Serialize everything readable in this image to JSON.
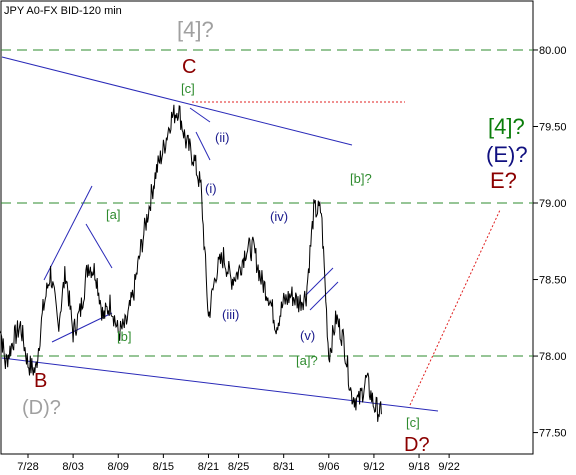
{
  "chart_data": {
    "type": "line",
    "title": "JPY A0-FX BID-120 min",
    "xlabel": "",
    "ylabel": "",
    "ylim": [
      77.36,
      80.32
    ],
    "y_ticks": [
      {
        "value": 80.0,
        "label": "80.00"
      },
      {
        "value": 79.5,
        "label": "79.50"
      },
      {
        "value": 79.0,
        "label": "79.00"
      },
      {
        "value": 78.5,
        "label": "78.50"
      },
      {
        "value": 78.0,
        "label": "78.00"
      },
      {
        "value": 77.5,
        "label": "77.50"
      }
    ],
    "x_ticks": [
      "7/28",
      "8/03",
      "8/09",
      "8/15",
      "8/21",
      "8/25",
      "8/31",
      "9/06",
      "9/12",
      "9/18",
      "9/22"
    ],
    "grid": false,
    "horizontal_levels": [
      80.0,
      79.0,
      78.0
    ],
    "series": [
      {
        "values": [
          {
            "x": "7/24",
            "y": 78.3
          },
          {
            "x": "7/25",
            "y": 77.95
          },
          {
            "x": "7/26",
            "y": 78.1
          },
          {
            "x": "7/27",
            "y": 78.2
          },
          {
            "x": "7/28",
            "y": 77.95
          },
          {
            "x": "7/29",
            "y": 77.9
          },
          {
            "x": "7/30",
            "y": 78.3
          },
          {
            "x": "7/31",
            "y": 78.55
          },
          {
            "x": "8/01",
            "y": 78.2
          },
          {
            "x": "8/02",
            "y": 78.55
          },
          {
            "x": "8/03",
            "y": 78.15
          },
          {
            "x": "8/04",
            "y": 78.3
          },
          {
            "x": "8/05",
            "y": 78.6
          },
          {
            "x": "8/06",
            "y": 78.55
          },
          {
            "x": "8/07",
            "y": 78.25
          },
          {
            "x": "8/08",
            "y": 78.35
          },
          {
            "x": "8/09",
            "y": 78.15
          },
          {
            "x": "8/10",
            "y": 78.2
          },
          {
            "x": "8/11",
            "y": 78.4
          },
          {
            "x": "8/12",
            "y": 78.7
          },
          {
            "x": "8/13",
            "y": 78.95
          },
          {
            "x": "8/14",
            "y": 79.2
          },
          {
            "x": "8/15",
            "y": 79.35
          },
          {
            "x": "8/16",
            "y": 79.55
          },
          {
            "x": "8/17",
            "y": 79.62
          },
          {
            "x": "8/18",
            "y": 79.4
          },
          {
            "x": "8/19",
            "y": 79.3
          },
          {
            "x": "8/20",
            "y": 79.1
          },
          {
            "x": "8/21",
            "y": 78.25
          },
          {
            "x": "8/22",
            "y": 78.55
          },
          {
            "x": "8/23",
            "y": 78.65
          },
          {
            "x": "8/24",
            "y": 78.5
          },
          {
            "x": "8/25",
            "y": 78.55
          },
          {
            "x": "8/26",
            "y": 78.7
          },
          {
            "x": "8/27",
            "y": 78.7
          },
          {
            "x": "8/28",
            "y": 78.5
          },
          {
            "x": "8/29",
            "y": 78.4
          },
          {
            "x": "8/30",
            "y": 78.2
          },
          {
            "x": "8/31",
            "y": 78.35
          },
          {
            "x": "9/01",
            "y": 78.4
          },
          {
            "x": "9/02",
            "y": 78.35
          },
          {
            "x": "9/03",
            "y": 78.4
          },
          {
            "x": "9/04",
            "y": 78.95
          },
          {
            "x": "9/05",
            "y": 78.95
          },
          {
            "x": "9/06",
            "y": 78.0
          },
          {
            "x": "9/07",
            "y": 78.25
          },
          {
            "x": "9/08",
            "y": 78.1
          },
          {
            "x": "9/09",
            "y": 77.75
          },
          {
            "x": "9/10",
            "y": 77.7
          },
          {
            "x": "9/11",
            "y": 77.85
          },
          {
            "x": "9/12",
            "y": 77.68
          },
          {
            "x": "9/13",
            "y": 77.62
          }
        ]
      }
    ],
    "annotations": [
      {
        "text": "[4]?",
        "color": "#a0a0a0"
      },
      {
        "text": "C",
        "color": "#8b0000"
      },
      {
        "text": "[c]",
        "color": "#2e8b2e"
      },
      {
        "text": "(ii)",
        "color": "#1a1a8c"
      },
      {
        "text": "(i)",
        "color": "#1a1a8c"
      },
      {
        "text": "[a]",
        "color": "#2e8b2e"
      },
      {
        "text": "[b]",
        "color": "#2e8b2e"
      },
      {
        "text": "(iii)",
        "color": "#1a1a8c"
      },
      {
        "text": "(iv)",
        "color": "#1a1a8c"
      },
      {
        "text": "(v)",
        "color": "#1a1a8c"
      },
      {
        "text": "[a]?",
        "color": "#2e8b2e"
      },
      {
        "text": "[b]?",
        "color": "#2e8b2e"
      },
      {
        "text": "[c]",
        "color": "#2e8b2e"
      },
      {
        "text": "B",
        "color": "#8b0000"
      },
      {
        "text": "(D)?",
        "color": "#a0a0a0"
      },
      {
        "text": "D?",
        "color": "#8b0000"
      },
      {
        "text": "[4]?",
        "color": "#0a7d0a"
      },
      {
        "text": "(E)?",
        "color": "#101080"
      },
      {
        "text": "E?",
        "color": "#8b0000"
      }
    ],
    "colors": {
      "price": "#000000",
      "channel": "#2a2ab8",
      "level_dash": "#2e8b2e",
      "projection": "#e02020"
    }
  }
}
